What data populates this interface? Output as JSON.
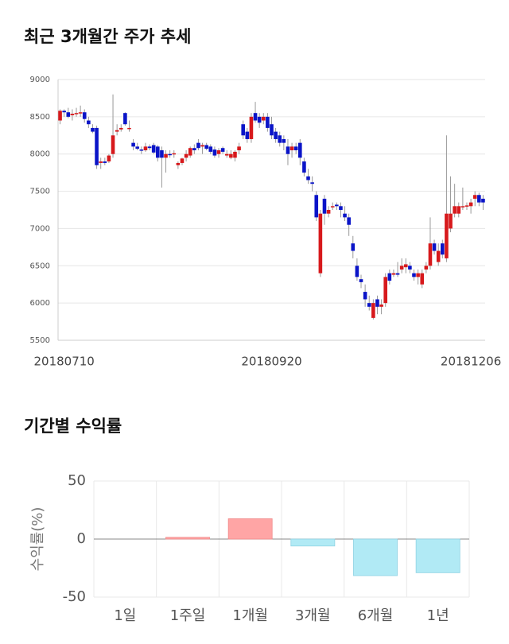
{
  "chart_data": [
    {
      "type": "candlestick",
      "title": "최근 3개월간 주가 추세",
      "categories": [
        null,
        "20180710",
        null,
        null,
        null,
        null,
        null,
        null,
        null,
        null,
        null,
        null,
        null,
        null,
        null,
        null,
        null,
        null,
        null,
        null,
        null,
        null,
        null,
        null,
        null,
        null,
        null,
        null,
        null,
        null,
        null,
        null,
        null,
        null,
        null,
        null,
        null,
        null,
        null,
        null,
        null,
        null,
        null,
        null,
        null,
        null,
        null,
        null,
        null,
        null,
        null,
        null,
        "20180920",
        null,
        null,
        null,
        null,
        null,
        null,
        null,
        null,
        null,
        null,
        null,
        null,
        null,
        null,
        null,
        null,
        null,
        null,
        null,
        null,
        null,
        null,
        null,
        null,
        null,
        null,
        null,
        null,
        null,
        null,
        null,
        null,
        null,
        null,
        null,
        null,
        null,
        null,
        null,
        null,
        null,
        null,
        null,
        null,
        null,
        null,
        null,
        null,
        "20181206",
        null,
        null,
        null
      ],
      "open": [
        8450,
        8580,
        8560,
        8520,
        8540,
        8550,
        8560,
        8450,
        8350,
        8350,
        7880,
        7900,
        7900,
        8000,
        8300,
        8330,
        8550,
        8340,
        8150,
        8100,
        8060,
        8050,
        8100,
        8120,
        8100,
        8050,
        7950,
        8000,
        8000,
        7850,
        7880,
        7950,
        7980,
        8080,
        8150,
        8100,
        8120,
        8100,
        8060,
        8000,
        8080,
        7980,
        7950,
        7950,
        8050,
        8400,
        8300,
        8200,
        8550,
        8500,
        8450,
        8500,
        8400,
        8300,
        8250,
        8200,
        8100,
        8050,
        8100,
        8150,
        7900,
        7700,
        7620,
        7450,
        6400,
        7400,
        7200,
        7300,
        7320,
        7300,
        7200,
        7150,
        6800,
        6500,
        6320,
        6150,
        6000,
        5800,
        6050,
        5950,
        6000,
        6400,
        6380,
        6400,
        6450,
        6480,
        6500,
        6400,
        6350,
        6250,
        6450,
        6500,
        6800,
        6550,
        6800,
        6600,
        7000,
        7200,
        7200,
        7300,
        7300,
        7300,
        7400,
        7450,
        7400
      ],
      "high": [
        8600,
        8600,
        8620,
        8600,
        8620,
        8650,
        8600,
        8500,
        8400,
        8380,
        7950,
        7950,
        8000,
        8800,
        8400,
        8400,
        8560,
        8450,
        8200,
        8150,
        8100,
        8150,
        8130,
        8150,
        8120,
        8100,
        8050,
        8050,
        8050,
        7900,
        7950,
        8050,
        8100,
        8130,
        8200,
        8150,
        8150,
        8130,
        8100,
        8080,
        8100,
        8050,
        8050,
        8050,
        8150,
        8450,
        8350,
        8550,
        8700,
        8550,
        8550,
        8550,
        8500,
        8350,
        8300,
        8250,
        8200,
        8150,
        8150,
        8200,
        7950,
        7800,
        7700,
        7500,
        7250,
        7450,
        7300,
        7350,
        7350,
        7350,
        7300,
        7200,
        6900,
        6600,
        6380,
        6250,
        6100,
        6050,
        6100,
        6050,
        6400,
        6450,
        6450,
        6550,
        6600,
        6600,
        6550,
        6450,
        6450,
        6450,
        6550,
        7150,
        6850,
        6800,
        6850,
        8250,
        7700,
        7600,
        7350,
        7550,
        7350,
        7400,
        7500,
        7480,
        7450
      ],
      "low": [
        8400,
        8500,
        8480,
        8450,
        8500,
        8500,
        8420,
        8350,
        8280,
        7800,
        7800,
        7850,
        7880,
        7950,
        8250,
        8300,
        8380,
        8300,
        8050,
        8050,
        8000,
        8030,
        8050,
        8000,
        7900,
        7550,
        7750,
        7950,
        7950,
        7800,
        7850,
        7900,
        7950,
        8000,
        8050,
        8000,
        8050,
        8000,
        7950,
        7950,
        8000,
        7950,
        7930,
        7900,
        8000,
        8200,
        8150,
        8150,
        8420,
        8350,
        8400,
        8300,
        8200,
        8150,
        8100,
        8050,
        7850,
        7950,
        8000,
        7850,
        7700,
        7600,
        7500,
        7100,
        6350,
        7050,
        7150,
        7250,
        7250,
        7150,
        7100,
        6900,
        6600,
        6300,
        6200,
        5950,
        5900,
        5780,
        5850,
        5850,
        5950,
        6250,
        6350,
        6350,
        6400,
        6400,
        6400,
        6300,
        6250,
        6200,
        6400,
        6450,
        6650,
        6500,
        6600,
        6550,
        6950,
        7150,
        7150,
        7250,
        7250,
        7200,
        7300,
        7300,
        7250
      ],
      "close": [
        8580,
        8560,
        8500,
        8540,
        8550,
        8560,
        8470,
        8400,
        8300,
        7850,
        7900,
        7880,
        7980,
        8250,
        8320,
        8350,
        8400,
        8350,
        8100,
        8070,
        8050,
        8100,
        8080,
        8020,
        7950,
        7950,
        8000,
        7990,
        8010,
        7880,
        7940,
        8000,
        8080,
        8050,
        8080,
        8120,
        8070,
        8030,
        7980,
        8050,
        8030,
        8000,
        8000,
        8030,
        8100,
        8250,
        8200,
        8500,
        8450,
        8420,
        8500,
        8350,
        8250,
        8200,
        8150,
        8150,
        8000,
        8100,
        8050,
        7950,
        7750,
        7650,
        7600,
        7150,
        7200,
        7200,
        7250,
        7300,
        7300,
        7250,
        7150,
        7050,
        6700,
        6350,
        6280,
        6050,
        5950,
        6000,
        5950,
        5980,
        6350,
        6300,
        6400,
        6380,
        6500,
        6520,
        6450,
        6350,
        6400,
        6400,
        6500,
        6800,
        6700,
        6700,
        6650,
        7200,
        7200,
        7300,
        7300,
        7300,
        7310,
        7350,
        7450,
        7350,
        7350
      ],
      "up_color": "#d7191c",
      "down_color": "#0a14c8",
      "ylim": [
        5500,
        9000
      ],
      "yticks": [
        5500,
        6000,
        6500,
        7000,
        7500,
        8000,
        8500,
        9000
      ],
      "grid": true
    },
    {
      "type": "bar",
      "title": "기간별 수익률",
      "ylabel": "수익률(%)",
      "categories": [
        "1일",
        "1주일",
        "1개월",
        "3개월",
        "6개월",
        "1년"
      ],
      "values": [
        0,
        1.5,
        17.5,
        -6,
        -31.5,
        -29
      ],
      "positive_color": "#ffa5a5",
      "negative_color": "#b1eaf5",
      "ylim": [
        -50,
        50
      ],
      "yticks": [
        -50,
        0,
        50
      ],
      "grid": true
    }
  ]
}
